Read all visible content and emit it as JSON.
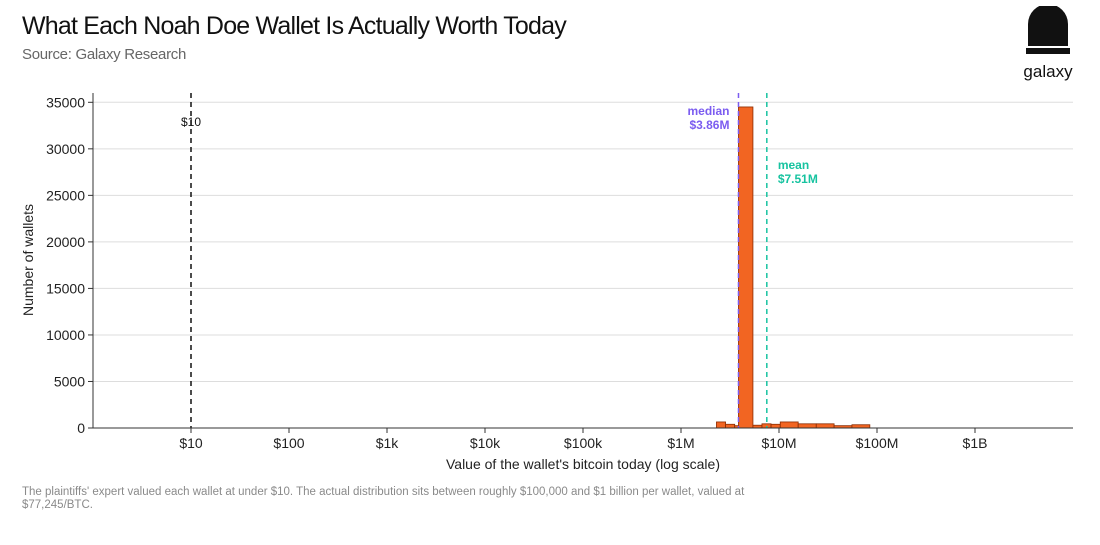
{
  "header": {
    "title": "What Each Noah Doe Wallet Is Actually Worth Today",
    "subtitle": "Source: Galaxy Research"
  },
  "logo": {
    "text": "galaxy",
    "icon": "galaxy-logo-icon"
  },
  "footnote": "The plaintiffs' expert valued each wallet at under $10. The actual distribution sits between roughly $100,000 and $1 billion per wallet, valued at $77,245/BTC.",
  "colors": {
    "bar_fill": "#f26522",
    "bar_stroke": "#8b2b00",
    "median": "#7b5cf0",
    "mean": "#17c3a0",
    "reference": "#111111",
    "grid": "#dddddd"
  },
  "chart_data": {
    "type": "bar",
    "xscale": "log",
    "xlabel": "Value of the wallet's bitcoin today (log scale)",
    "ylabel": "Number of wallets",
    "xlim": [
      1,
      10000000000
    ],
    "ylim": [
      0,
      36000
    ],
    "grid": "horizontal",
    "x_ticks": [
      {
        "value": 10,
        "label": "$10"
      },
      {
        "value": 100,
        "label": "$100"
      },
      {
        "value": 1000,
        "label": "$1k"
      },
      {
        "value": 10000,
        "label": "$10k"
      },
      {
        "value": 100000,
        "label": "$100k"
      },
      {
        "value": 1000000,
        "label": "$1M"
      },
      {
        "value": 10000000,
        "label": "$10M"
      },
      {
        "value": 100000000,
        "label": "$100M"
      },
      {
        "value": 1000000000,
        "label": "$1B"
      }
    ],
    "y_ticks": [
      0,
      5000,
      10000,
      15000,
      20000,
      25000,
      30000,
      35000
    ],
    "bins": [
      {
        "x0": 2300000,
        "x1": 2850000,
        "count": 650
      },
      {
        "x0": 2850000,
        "x1": 3530000,
        "count": 400
      },
      {
        "x0": 3530000,
        "x1": 3860000,
        "count": 250
      },
      {
        "x0": 3860000,
        "x1": 5420000,
        "count": 34500
      },
      {
        "x0": 5420000,
        "x1": 6700000,
        "count": 300
      },
      {
        "x0": 6700000,
        "x1": 8300000,
        "count": 450
      },
      {
        "x0": 8300000,
        "x1": 10300000,
        "count": 400
      },
      {
        "x0": 10300000,
        "x1": 15700000,
        "count": 650
      },
      {
        "x0": 15700000,
        "x1": 24000000,
        "count": 450
      },
      {
        "x0": 24000000,
        "x1": 36500000,
        "count": 450
      },
      {
        "x0": 36500000,
        "x1": 55500000,
        "count": 250
      },
      {
        "x0": 55500000,
        "x1": 84500000,
        "count": 350
      }
    ],
    "reference_lines": [
      {
        "name": "reference-line",
        "x": 10,
        "label": "$10",
        "label_lines": [
          "$10"
        ],
        "color_key": "reference"
      },
      {
        "name": "median-line",
        "x": 3860000,
        "label": "median $3.86M",
        "label_lines": [
          "median",
          "$3.86M"
        ],
        "color_key": "median"
      },
      {
        "name": "mean-line",
        "x": 7510000,
        "label": "mean $7.51M",
        "label_lines": [
          "mean",
          "$7.51M"
        ],
        "color_key": "mean"
      }
    ]
  }
}
